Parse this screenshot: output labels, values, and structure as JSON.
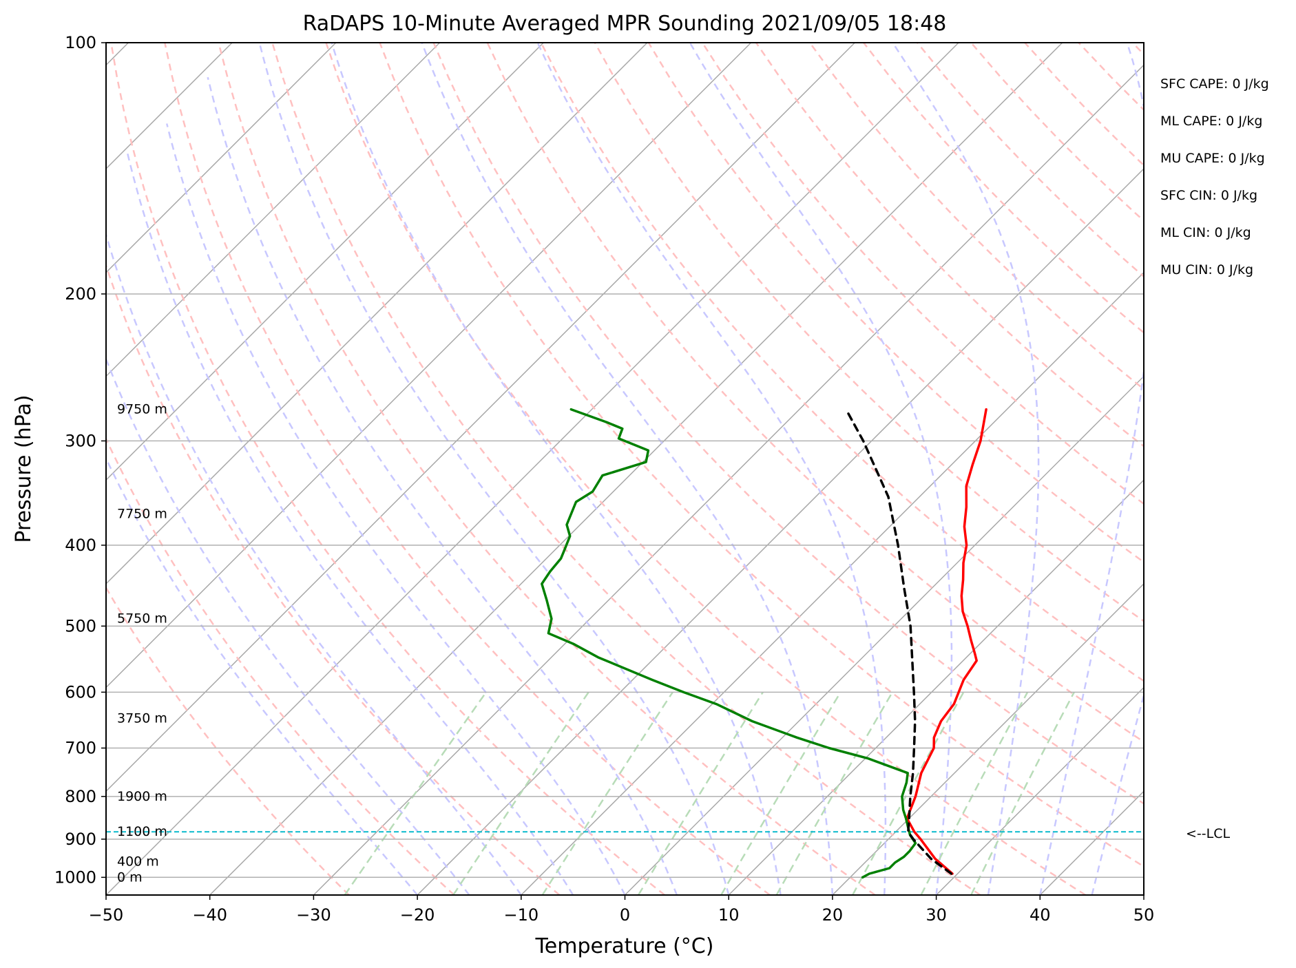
{
  "chart_data": {
    "type": "line",
    "title": "RaDAPS 10-Minute Averaged MPR Sounding 2021/09/05 18:48",
    "xlabel": "Temperature (°C)",
    "ylabel": "Pressure (hPa)",
    "xlim": [
      -50,
      50
    ],
    "ylim": [
      1050,
      100
    ],
    "y_scale": "log",
    "x_ticks": [
      -50,
      -40,
      -30,
      -20,
      -10,
      0,
      10,
      20,
      30,
      40,
      50
    ],
    "x_tick_labels": [
      "−50",
      "−40",
      "−30",
      "−20",
      "−10",
      "0",
      "10",
      "20",
      "30",
      "40",
      "50"
    ],
    "y_ticks": [
      100,
      200,
      300,
      400,
      500,
      600,
      700,
      800,
      900,
      1000
    ],
    "y_tick_labels": [
      "100",
      "200",
      "300",
      "400",
      "500",
      "600",
      "700",
      "800",
      "900",
      "1000"
    ],
    "skew_t": true,
    "grid": true,
    "height_labels": [
      {
        "text": "9750 m",
        "p": 275
      },
      {
        "text": "7750 m",
        "p": 367
      },
      {
        "text": "5750 m",
        "p": 490
      },
      {
        "text": "3750 m",
        "p": 645
      },
      {
        "text": "1900 m",
        "p": 800
      },
      {
        "text": "1100 m",
        "p": 882
      },
      {
        "text": "400 m",
        "p": 958
      },
      {
        "text": "0 m",
        "p": 1000
      }
    ],
    "lcl": {
      "p": 882,
      "label": "<--LCL",
      "color": "#17becf"
    },
    "series": [
      {
        "role": "temperature",
        "color": "#ff0000",
        "points": [
          [
            990,
            29.5
          ],
          [
            950,
            26.4
          ],
          [
            900,
            23.1
          ],
          [
            882,
            21.8
          ],
          [
            850,
            19.8
          ],
          [
            800,
            18.5
          ],
          [
            750,
            16.8
          ],
          [
            700,
            15.6
          ],
          [
            680,
            14.6
          ],
          [
            650,
            13.7
          ],
          [
            620,
            13.3
          ],
          [
            580,
            11.9
          ],
          [
            550,
            11.3
          ],
          [
            540,
            10.5
          ],
          [
            520,
            8.8
          ],
          [
            500,
            7.1
          ],
          [
            480,
            5.2
          ],
          [
            460,
            3.6
          ],
          [
            440,
            2.2
          ],
          [
            420,
            0.6
          ],
          [
            400,
            -0.8
          ],
          [
            380,
            -2.8
          ],
          [
            360,
            -4.5
          ],
          [
            340,
            -6.5
          ],
          [
            320,
            -8.0
          ],
          [
            300,
            -9.5
          ],
          [
            275,
            -12.0
          ]
        ]
      },
      {
        "role": "dewpoint",
        "color": "#008000",
        "points": [
          [
            1000,
            21.2
          ],
          [
            990,
            21.5
          ],
          [
            975,
            22.9
          ],
          [
            960,
            22.9
          ],
          [
            945,
            23.2
          ],
          [
            930,
            23.2
          ],
          [
            910,
            23.0
          ],
          [
            890,
            21.7
          ],
          [
            870,
            20.7
          ],
          [
            850,
            19.7
          ],
          [
            830,
            18.6
          ],
          [
            800,
            17.2
          ],
          [
            770,
            16.3
          ],
          [
            750,
            15.5
          ],
          [
            720,
            10.2
          ],
          [
            700,
            5.5
          ],
          [
            680,
            1.4
          ],
          [
            650,
            -4.5
          ],
          [
            620,
            -9.6
          ],
          [
            600,
            -13.9
          ],
          [
            580,
            -18.1
          ],
          [
            545,
            -25.5
          ],
          [
            525,
            -29.2
          ],
          [
            510,
            -32.6
          ],
          [
            490,
            -33.7
          ],
          [
            465,
            -36.0
          ],
          [
            445,
            -38.0
          ],
          [
            430,
            -38.4
          ],
          [
            415,
            -38.6
          ],
          [
            405,
            -39.1
          ],
          [
            390,
            -39.9
          ],
          [
            378,
            -41.3
          ],
          [
            355,
            -42.6
          ],
          [
            345,
            -42.0
          ],
          [
            330,
            -42.6
          ],
          [
            318,
            -39.7
          ],
          [
            308,
            -40.6
          ],
          [
            298,
            -44.6
          ],
          [
            290,
            -45.2
          ],
          [
            285,
            -47.3
          ],
          [
            275,
            -52.0
          ]
        ]
      },
      {
        "role": "parcel",
        "color": "#000000",
        "style": "dashed",
        "points": [
          [
            990,
            29.4
          ],
          [
            950,
            26.0
          ],
          [
            900,
            22.4
          ],
          [
            882,
            21.2
          ],
          [
            850,
            20.0
          ],
          [
            800,
            18.0
          ],
          [
            750,
            16.0
          ],
          [
            700,
            13.7
          ],
          [
            650,
            11.2
          ],
          [
            600,
            8.3
          ],
          [
            550,
            5.1
          ],
          [
            500,
            1.6
          ],
          [
            450,
            -2.7
          ],
          [
            400,
            -7.4
          ],
          [
            350,
            -13.0
          ],
          [
            300,
            -20.8
          ],
          [
            275,
            -25.5
          ]
        ]
      }
    ],
    "stats": [
      "SFC CAPE: 0 J/kg",
      "ML CAPE: 0 J/kg",
      "MU CAPE: 0 J/kg",
      "SFC CIN: 0 J/kg",
      "ML CIN: 0 J/kg",
      "MU CIN: 0 J/kg"
    ],
    "background_lines": {
      "isotherm_color": "#a8a8a8",
      "dry_adiabat_color": "#ffc0c0",
      "moist_adiabat_color": "#c8c8ff",
      "mixing_ratio_color": "#b8dcb8"
    }
  }
}
